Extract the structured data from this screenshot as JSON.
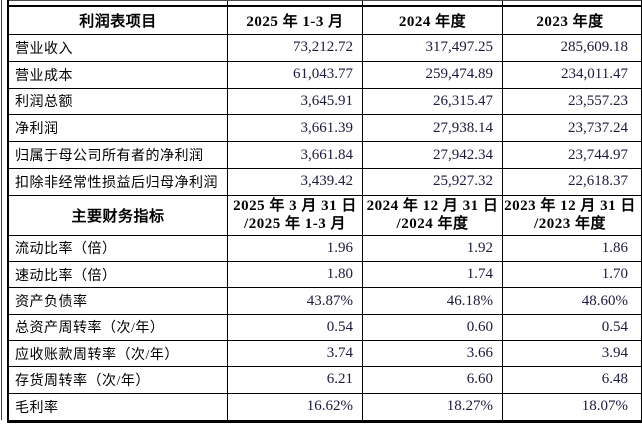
{
  "colors": {
    "background": "#ffffff",
    "border": "#000000",
    "label_text": "#000000",
    "number_text": "#1a1a3c"
  },
  "income_section": {
    "header": {
      "label": "利润表项目",
      "periods": [
        "2025 年 1-3 月",
        "2024 年度",
        "2023 年度"
      ]
    },
    "rows": [
      {
        "label": "营业收入",
        "values": [
          "73,212.72",
          "317,497.25",
          "285,609.18"
        ]
      },
      {
        "label": "营业成本",
        "values": [
          "61,043.77",
          "259,474.89",
          "234,011.47"
        ]
      },
      {
        "label": "利润总额",
        "values": [
          "3,645.91",
          "26,315.47",
          "23,557.23"
        ]
      },
      {
        "label": "净利润",
        "values": [
          "3,661.39",
          "27,938.14",
          "23,737.24"
        ]
      },
      {
        "label": "归属于母公司所有者的净利润",
        "values": [
          "3,661.84",
          "27,942.34",
          "23,744.97"
        ]
      },
      {
        "label": "扣除非经常性损益后归母净利润",
        "values": [
          "3,439.42",
          "25,927.32",
          "22,618.37"
        ]
      }
    ]
  },
  "indicator_section": {
    "header": {
      "label": "主要财务指标",
      "periods": [
        {
          "line1": "2025 年 3 月 31 日",
          "line2": "/2025 年 1-3 月"
        },
        {
          "line1": "2024 年 12 月 31 日",
          "line2": "/2024 年度"
        },
        {
          "line1": "2023 年 12 月 31 日",
          "line2": "/2023 年度"
        }
      ]
    },
    "rows": [
      {
        "label": "流动比率（倍）",
        "values": [
          "1.96",
          "1.92",
          "1.86"
        ]
      },
      {
        "label": "速动比率（倍）",
        "values": [
          "1.80",
          "1.74",
          "1.70"
        ]
      },
      {
        "label": "资产负债率",
        "values": [
          "43.87%",
          "46.18%",
          "48.60%"
        ]
      },
      {
        "label": "总资产周转率（次/年）",
        "values": [
          "0.54",
          "0.60",
          "0.54"
        ]
      },
      {
        "label": "应收账款周转率（次/年）",
        "values": [
          "3.74",
          "3.66",
          "3.94"
        ]
      },
      {
        "label": "存货周转率（次/年）",
        "values": [
          "6.21",
          "6.60",
          "6.48"
        ]
      },
      {
        "label": "毛利率",
        "values": [
          "16.62%",
          "18.27%",
          "18.07%"
        ]
      }
    ]
  }
}
